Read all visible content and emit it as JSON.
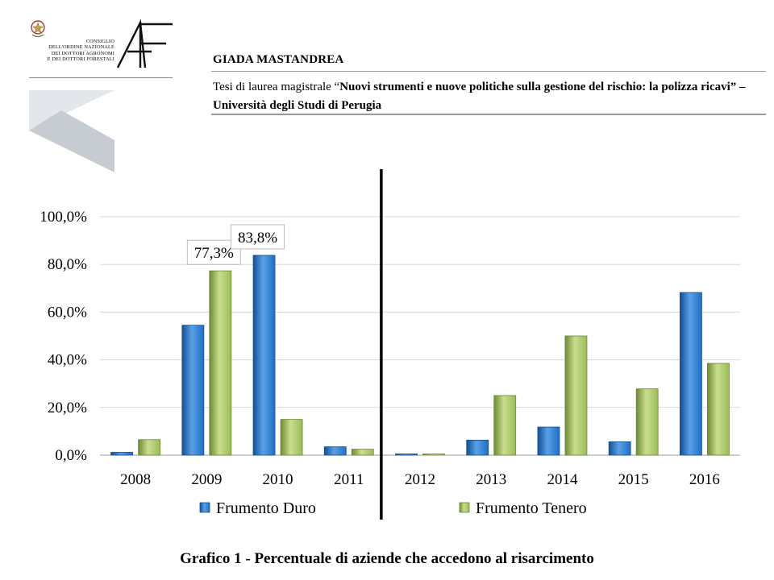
{
  "header": {
    "org_lines": [
      "CONSIGLIO",
      "DELL'ORDINE NAZIONALE",
      "DEI DOTTORI AGRONOMI",
      "E DEI DOTTORI FORESTALI"
    ],
    "author": "GIADA MASTANDREA",
    "thesis_prefix": "Tesi di laurea magistrale “",
    "thesis_title": "Nuovi strumenti e nuove politiche sulla gestione del rischio: la polizza ricavi",
    "thesis_suffix": "” – Università degli Studi di Perugia"
  },
  "caption": "Grafico 1 - Percentuale di aziende che accedono al risarcimento",
  "chart_data": {
    "type": "bar",
    "categories": [
      "2008",
      "2009",
      "2010",
      "2011",
      "2012",
      "2013",
      "2014",
      "2015",
      "2016"
    ],
    "series": [
      {
        "name": "Frumento Duro",
        "color": "#1f6fc4",
        "values": [
          1.2,
          54.5,
          83.8,
          3.5,
          0.4,
          6.3,
          11.8,
          5.6,
          68.2
        ]
      },
      {
        "name": "Frumento Tenero",
        "color": "#9bbb59",
        "values": [
          6.5,
          77.3,
          15.0,
          2.5,
          0.4,
          25.0,
          50.0,
          27.8,
          38.5
        ]
      }
    ],
    "ylim": [
      0,
      100
    ],
    "yticks": [
      "0,0%",
      "20,0%",
      "40,0%",
      "60,0%",
      "80,0%",
      "100,0%"
    ],
    "grid": true,
    "data_labels": [
      {
        "category": "2009",
        "series": "Frumento Tenero",
        "text": "77,3%"
      },
      {
        "category": "2010",
        "series": "Frumento Duro",
        "text": "83,8%"
      }
    ],
    "separator_after": "2011",
    "legend": "bottom"
  }
}
